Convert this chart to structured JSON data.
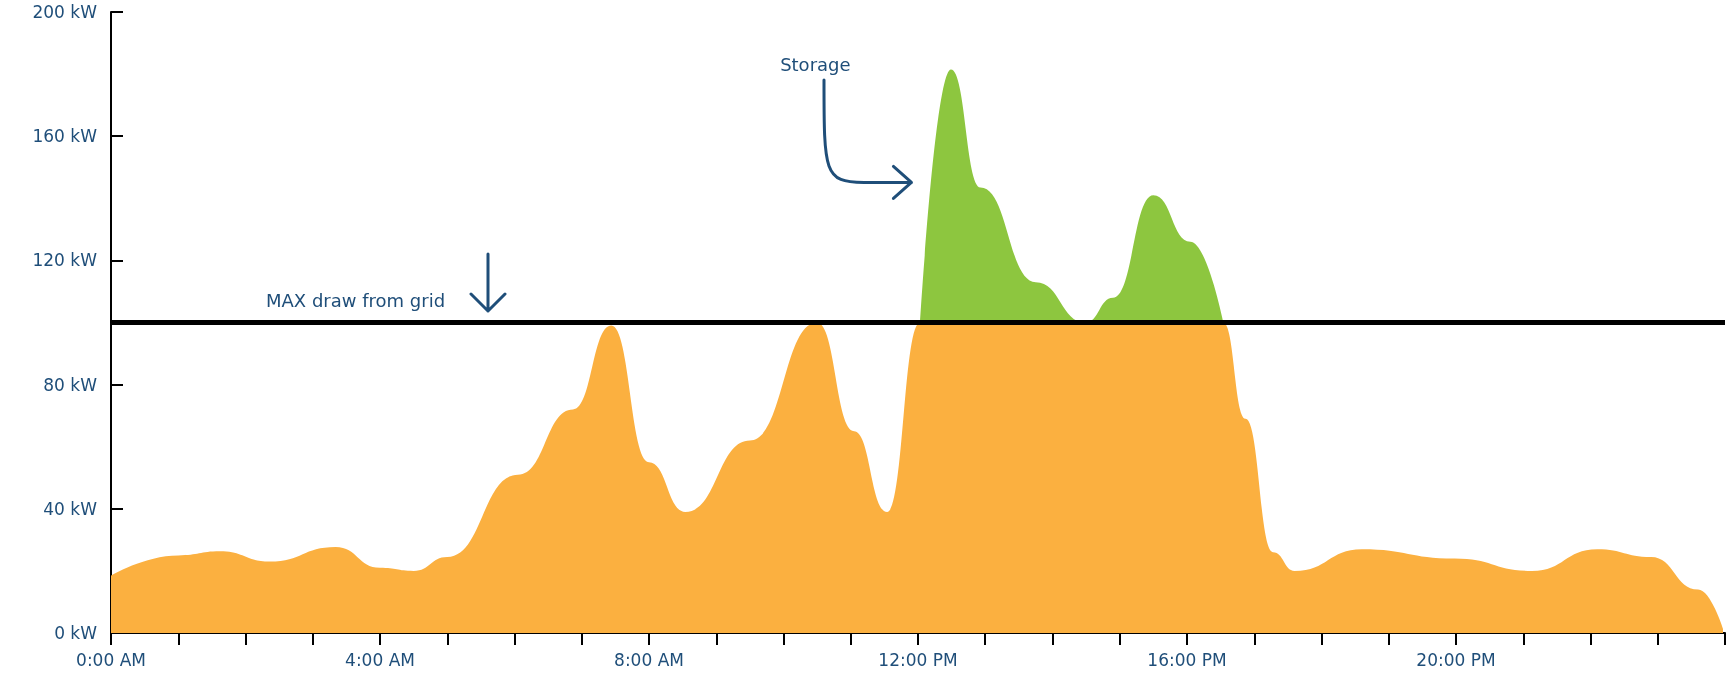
{
  "chart_data": {
    "type": "area",
    "x": [
      0,
      1,
      1.62,
      2.36,
      3.34,
      4,
      4.5,
      5,
      6.05,
      6.87,
      7.44,
      8.0,
      8.54,
      9.5,
      10.5,
      11.05,
      11.54,
      12.03,
      12.49,
      12.93,
      13.75,
      14.49,
      14.9,
      15.5,
      16.05,
      16.54,
      16.87,
      17.28,
      17.6,
      18.6,
      19.98,
      21.13,
      22.1,
      22.9,
      23.6,
      23.97
    ],
    "series": [
      {
        "color": "#fbb040",
        "values": [
          18.5,
          25,
          26.3,
          23,
          27.7,
          21,
          20,
          24.5,
          51,
          72,
          99,
          55,
          39,
          62,
          100,
          65,
          39,
          100,
          100,
          100,
          100,
          100,
          100,
          100,
          100,
          100,
          69,
          26,
          20,
          27,
          24,
          20,
          27,
          24.5,
          14,
          1.4
        ]
      },
      {
        "color": "#8dc63f",
        "x": [
          12.03,
          12.49,
          12.93,
          13.75,
          14.49,
          14.9,
          15.5,
          16.05,
          16.54
        ],
        "values": [
          100,
          181.5,
          143.5,
          113,
          100,
          108,
          141,
          126,
          100
        ]
      }
    ],
    "xlim": [
      0,
      24
    ],
    "xticks": [
      {
        "value": 0,
        "label": "0:00 AM"
      },
      {
        "value": 1,
        "label": null
      },
      {
        "value": 2,
        "label": null
      },
      {
        "value": 3,
        "label": null
      },
      {
        "value": 4,
        "label": "4:00 AM"
      },
      {
        "value": 5,
        "label": null
      },
      {
        "value": 6,
        "label": null
      },
      {
        "value": 7,
        "label": null
      },
      {
        "value": 8,
        "label": "8:00 AM"
      },
      {
        "value": 9,
        "label": null
      },
      {
        "value": 10,
        "label": null
      },
      {
        "value": 11,
        "label": null
      },
      {
        "value": 12,
        "label": "12:00 PM"
      },
      {
        "value": 13,
        "label": null
      },
      {
        "value": 14,
        "label": null
      },
      {
        "value": 15,
        "label": null
      },
      {
        "value": 16,
        "label": "16:00 PM"
      },
      {
        "value": 17,
        "label": null
      },
      {
        "value": 18,
        "label": null
      },
      {
        "value": 19,
        "label": null
      },
      {
        "value": 20,
        "label": "20:00 PM"
      },
      {
        "value": 21,
        "label": null
      },
      {
        "value": 22,
        "label": null
      },
      {
        "value": 23,
        "label": null
      },
      {
        "value": 24,
        "label": null
      }
    ],
    "ylim": [
      0,
      200
    ],
    "yticks": [
      {
        "value": 0,
        "label": "0 kW"
      },
      {
        "value": 40,
        "label": "40 kW"
      },
      {
        "value": 80,
        "label": "80 kW"
      },
      {
        "value": 120,
        "label": "120 kW"
      },
      {
        "value": 160,
        "label": "160 kW"
      },
      {
        "value": 200,
        "label": "200 kW"
      }
    ],
    "ref_lines": [
      {
        "axis": "y",
        "value": 100,
        "label": "MAX draw from grid",
        "color": "#000000"
      }
    ],
    "annotations": [
      "Storage"
    ]
  }
}
